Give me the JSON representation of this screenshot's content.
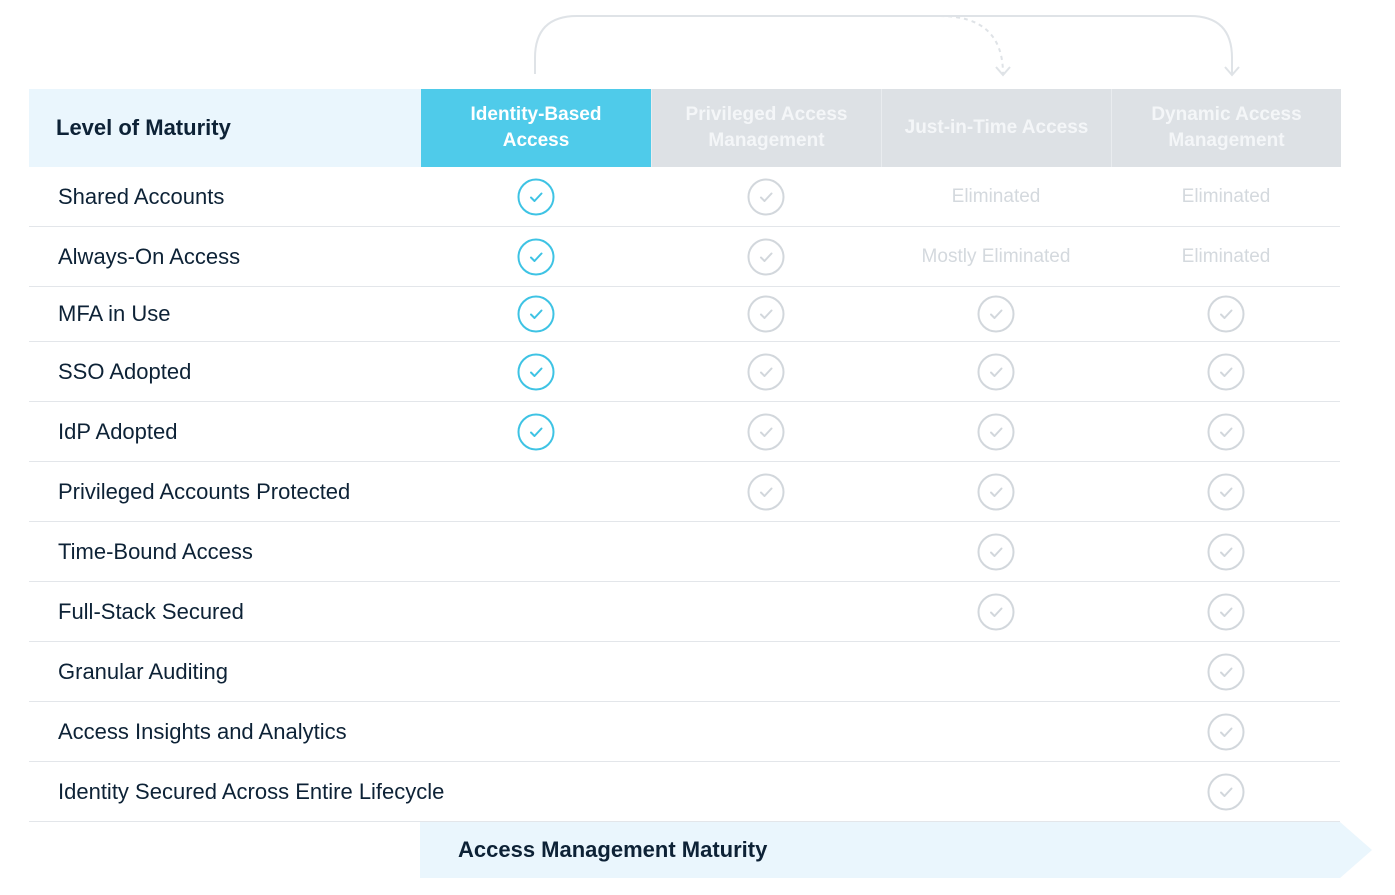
{
  "header": {
    "level_label": "Level of Maturity",
    "columns": [
      "Identity-Based Access",
      "Privileged Access Management",
      "Just-in-Time Access",
      "Dynamic Access Management"
    ]
  },
  "rows": [
    {
      "label": "Shared Accounts",
      "cells": [
        "check",
        "check",
        "Eliminated",
        "Eliminated"
      ]
    },
    {
      "label": "Always-On Access",
      "cells": [
        "check",
        "check",
        "Mostly Eliminated",
        "Eliminated"
      ]
    },
    {
      "label": "MFA in Use",
      "cells": [
        "check",
        "check",
        "check",
        "check"
      ]
    },
    {
      "label": "SSO Adopted",
      "cells": [
        "check",
        "check",
        "check",
        "check"
      ]
    },
    {
      "label": "IdP Adopted",
      "cells": [
        "check",
        "check",
        "check",
        "check"
      ]
    },
    {
      "label": "Privileged Accounts Protected",
      "cells": [
        "",
        "check",
        "check",
        "check"
      ]
    },
    {
      "label": "Time-Bound Access",
      "cells": [
        "",
        "",
        "check",
        "check"
      ]
    },
    {
      "label": "Full-Stack Secured",
      "cells": [
        "",
        "",
        "check",
        "check"
      ]
    },
    {
      "label": "Granular Auditing",
      "cells": [
        "",
        "",
        "",
        "check"
      ]
    },
    {
      "label": "Access Insights and Analytics",
      "cells": [
        "",
        "",
        "",
        "check"
      ]
    },
    {
      "label": "Identity Secured Across Entire Lifecycle",
      "cells": [
        "",
        "",
        "",
        "check"
      ]
    }
  ],
  "footer": {
    "label": "Access Management Maturity"
  },
  "colors": {
    "active": "#4fcbea",
    "check_active": "#3ec3e4",
    "check_inactive": "#d2d7dc",
    "text_dark": "#0d2236",
    "header_bg": "#eaf6fd"
  }
}
